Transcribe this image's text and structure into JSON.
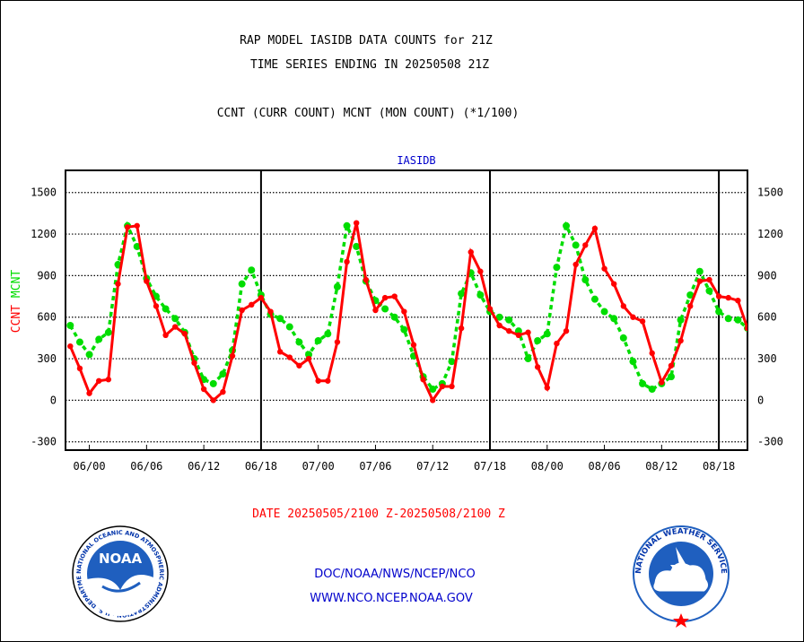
{
  "header": {
    "title_line1": "RAP MODEL IASIDB DATA COUNTS for 21Z",
    "title_line2": "TIME SERIES ENDING IN 20250508 21Z",
    "subtitle": "CCNT (CURR COUNT) MCNT (MON COUNT) (*1/100)"
  },
  "footer": {
    "date_range": "DATE 20250505/2100 Z-20250508/2100 Z",
    "credit": "DOC/NOAA/NWS/NCEP/NCO",
    "website": "WWW.NCO.NCEP.NOAA.GOV"
  },
  "logos": {
    "noaa_text": "NOAA",
    "noaa_ring": "NATIONAL OCEANIC AND ATMOSPHERIC ADMINISTRATION · U.S. DEPARTMENT OF COMMERCE",
    "nws_ring": "NATIONAL WEATHER SERVICE"
  },
  "colors": {
    "ccnt": "#ff0000",
    "mcnt": "#00dd00",
    "panel_title": "#0000cc",
    "footer_date": "#ff0000",
    "footer_link": "#0000cc"
  },
  "chart_data": {
    "type": "line",
    "title": "IASIDB",
    "ylabel_left": [
      {
        "text": "CCNT",
        "color": "#ff0000"
      },
      {
        "text": "MCNT",
        "color": "#00dd00"
      }
    ],
    "ylim": [
      -360,
      1660
    ],
    "yticks": [
      -300,
      0,
      300,
      600,
      900,
      1200,
      1500
    ],
    "grid": "dotted-horizontal",
    "x_range_hours": [
      -2.5,
      69.0
    ],
    "xtick_labels": [
      "06/00",
      "06/06",
      "06/12",
      "06/18",
      "07/00",
      "07/06",
      "07/12",
      "07/18",
      "08/00",
      "08/06",
      "08/12",
      "08/18"
    ],
    "xtick_hours": [
      0,
      6,
      12,
      18,
      24,
      30,
      36,
      42,
      48,
      54,
      60,
      66
    ],
    "day_boundaries_hours": [
      18,
      42,
      66
    ],
    "x_hours": [
      -2,
      -1,
      0,
      1,
      2,
      3,
      4,
      5,
      6,
      7,
      8,
      9,
      10,
      11,
      12,
      13,
      14,
      15,
      16,
      17,
      18,
      19,
      20,
      21,
      22,
      23,
      24,
      25,
      26,
      27,
      28,
      29,
      30,
      31,
      32,
      33,
      34,
      35,
      36,
      37,
      38,
      39,
      40,
      41,
      42,
      43,
      44,
      45,
      46,
      47,
      48,
      49,
      50,
      51,
      52,
      53,
      54,
      55,
      56,
      57,
      58,
      59,
      60,
      61,
      62,
      63,
      64,
      65,
      66,
      67,
      68,
      69
    ],
    "series": [
      {
        "name": "CCNT",
        "color": "#ff0000",
        "style": "solid",
        "values": [
          390,
          230,
          50,
          140,
          150,
          840,
          1250,
          1260,
          860,
          680,
          470,
          530,
          480,
          270,
          80,
          0,
          60,
          320,
          650,
          690,
          740,
          640,
          350,
          310,
          250,
          300,
          140,
          140,
          420,
          1000,
          1280,
          870,
          650,
          740,
          750,
          640,
          400,
          150,
          0,
          100,
          100,
          520,
          1070,
          930,
          660,
          540,
          500,
          470,
          490,
          240,
          90,
          410,
          500,
          980,
          1120,
          1240,
          950,
          840,
          680,
          600,
          570,
          340,
          130,
          250,
          430,
          680,
          860,
          870,
          750,
          740,
          720,
          520
        ]
      },
      {
        "name": "MCNT",
        "color": "#00dd00",
        "style": "dotted",
        "values": [
          540,
          420,
          330,
          440,
          490,
          980,
          1260,
          1110,
          880,
          750,
          660,
          590,
          490,
          300,
          150,
          120,
          190,
          360,
          840,
          940,
          760,
          620,
          590,
          530,
          420,
          330,
          430,
          480,
          820,
          1260,
          1110,
          860,
          720,
          660,
          600,
          510,
          320,
          170,
          80,
          120,
          280,
          770,
          920,
          760,
          640,
          600,
          580,
          500,
          300,
          430,
          480,
          960,
          1260,
          1120,
          870,
          730,
          640,
          590,
          450,
          280,
          120,
          80,
          120,
          170,
          580,
          760,
          930,
          790,
          640,
          590,
          580,
          520
        ]
      }
    ]
  }
}
